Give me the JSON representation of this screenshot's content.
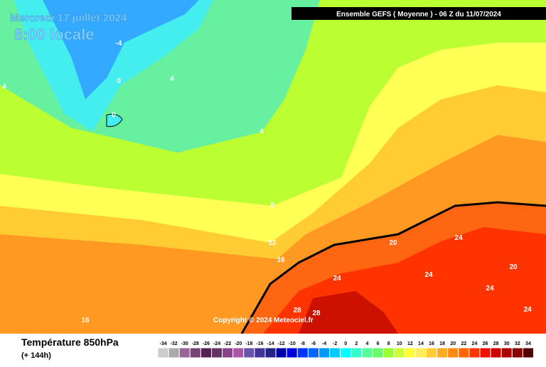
{
  "header": {
    "date": "Mercredi 17 juillet 2024",
    "time": "8:00 locale",
    "model": "Ensemble GEFS  ( Moyenne )  -  06 Z du 11/07/2024"
  },
  "copyright": "Copyright © 2024 Meteociel.fr",
  "footer": {
    "title": "Température 850hPa",
    "lead": "(+ 144h)"
  },
  "contour_labels": [
    -4,
    0,
    4,
    0,
    4,
    4,
    8,
    12,
    16,
    20,
    24,
    24,
    24,
    24,
    24,
    20,
    28,
    28,
    16
  ],
  "legend": {
    "ticks": [
      -34,
      -32,
      -30,
      -28,
      -26,
      -24,
      -22,
      -20,
      -18,
      -16,
      -14,
      -12,
      -10,
      -8,
      -6,
      -4,
      -2,
      0,
      2,
      4,
      6,
      8,
      10,
      12,
      14,
      16,
      18,
      20,
      22,
      24,
      26,
      28,
      30,
      32,
      34
    ],
    "colors": [
      "#cccccc",
      "#aaaaaa",
      "#996699",
      "#774477",
      "#552255",
      "#663366",
      "#884488",
      "#aa55aa",
      "#6655aa",
      "#443399",
      "#222288",
      "#0000aa",
      "#0000dd",
      "#0033ff",
      "#0066ff",
      "#0099ff",
      "#00ccff",
      "#00ffff",
      "#33ffcc",
      "#55ff99",
      "#66ff66",
      "#99ff33",
      "#ccff33",
      "#ffff33",
      "#ffee55",
      "#ffcc33",
      "#ffaa22",
      "#ff8811",
      "#ff6600",
      "#ff3300",
      "#ee1100",
      "#cc0000",
      "#aa0000",
      "#880000",
      "#550000"
    ]
  }
}
